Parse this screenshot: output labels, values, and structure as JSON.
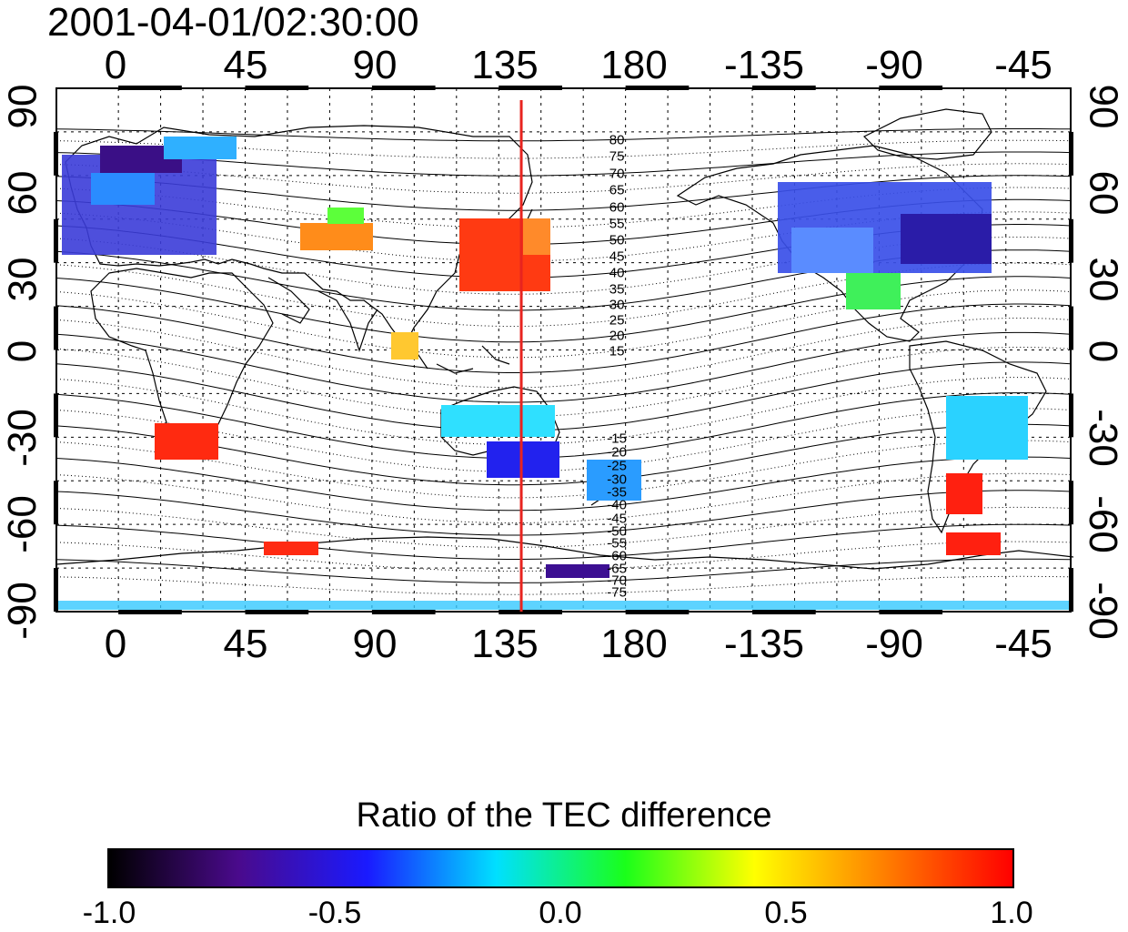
{
  "title": "2001-04-01/02:30:00",
  "x_ticks": [
    "0",
    "45",
    "90",
    "135",
    "180",
    "-135",
    "-90",
    "-45"
  ],
  "y_ticks": [
    "90",
    "60",
    "30",
    "0",
    "-30",
    "-60",
    "-90"
  ],
  "map": {
    "lon_range": [
      -22,
      338
    ],
    "lat_range": [
      -90,
      90
    ],
    "grid": true,
    "marker_longitude": 143,
    "marker_color": "#e8241f",
    "land_outline_color": "#000000",
    "magnetic_latitude_labels": [
      "80",
      "75",
      "70",
      "65",
      "60",
      "55",
      "50",
      "45",
      "40",
      "35",
      "30",
      "25",
      "20",
      "15",
      "-15",
      "-20",
      "-25",
      "-30",
      "-35",
      "-40",
      "-45",
      "-50",
      "-55",
      "-60",
      "-65",
      "-70",
      "-75"
    ]
  },
  "colorbar": {
    "title": "Ratio of the TEC difference",
    "tick_labels": [
      "-1.0",
      "-0.5",
      "0.0",
      "0.5",
      "1.0"
    ],
    "range": [
      -1.0,
      1.0
    ],
    "stops": [
      "#000000",
      "#4a0a8c",
      "#1a1aff",
      "#00e0ff",
      "#1aff1a",
      "#ffff00",
      "#ff8000",
      "#ff0000"
    ]
  }
}
